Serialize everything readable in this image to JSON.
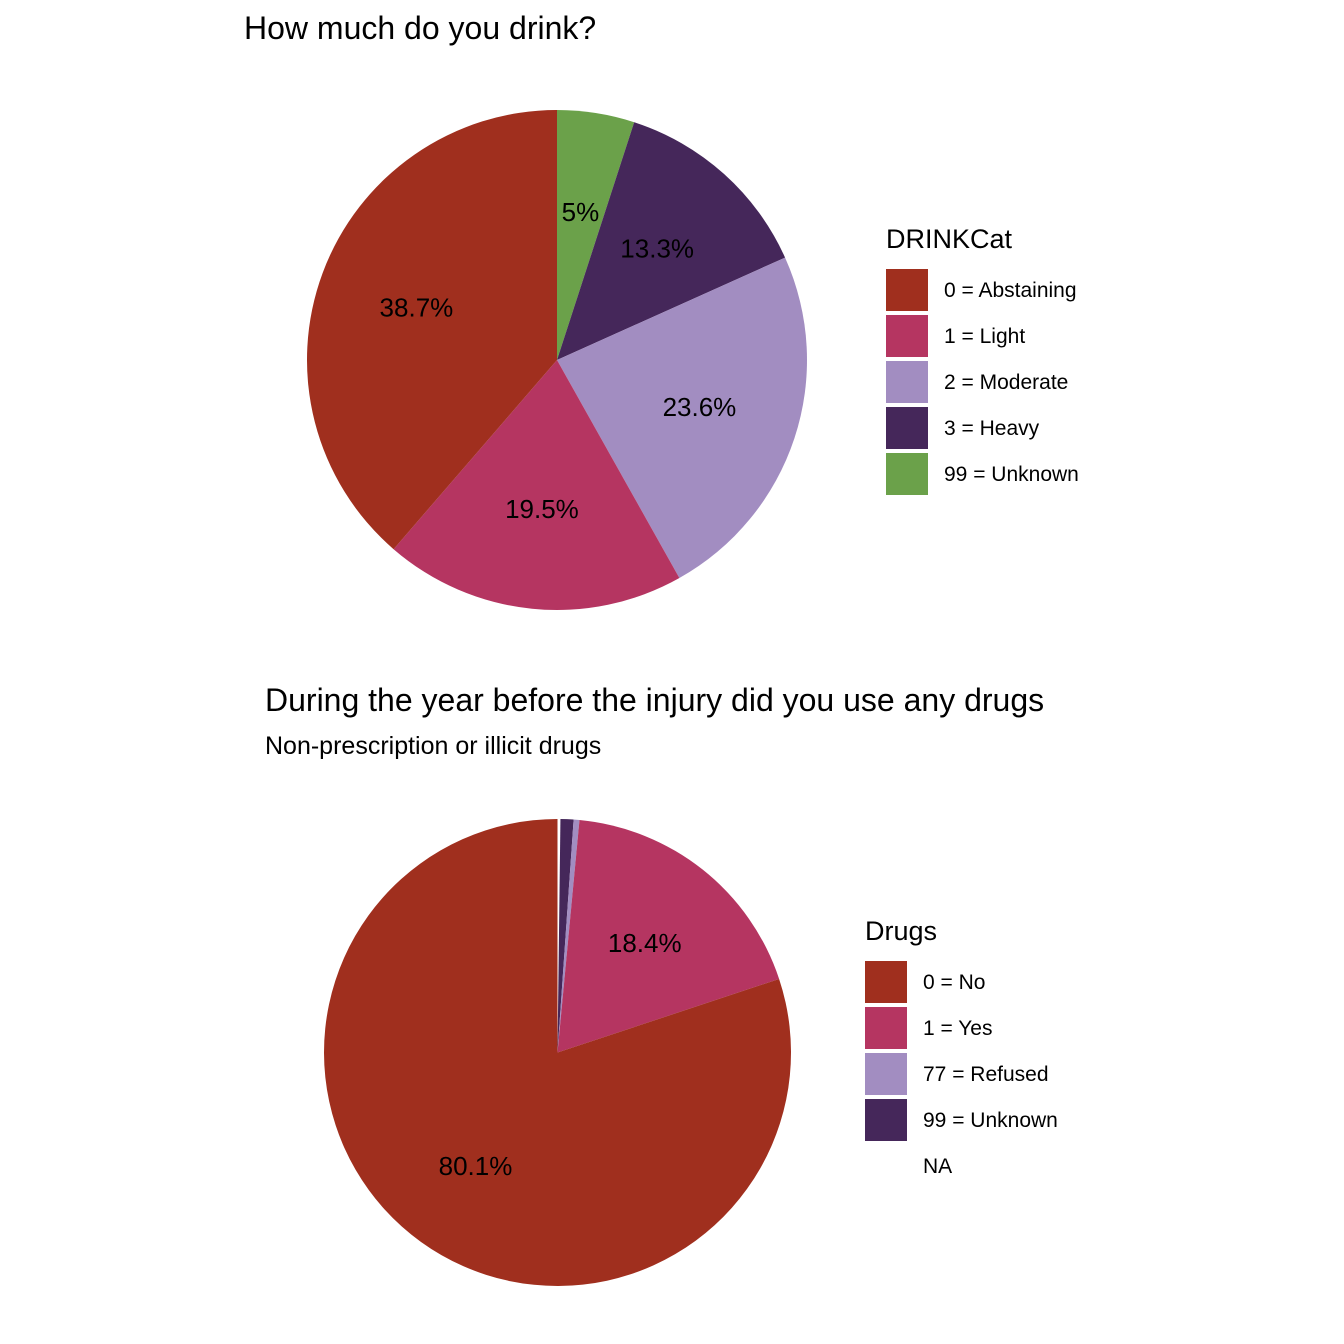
{
  "chart_data": [
    {
      "type": "pie",
      "title": "How much do you drink?",
      "subtitle": "",
      "legend_title": "DRINKCat",
      "legend_position": "right",
      "direction": "clockwise",
      "start": "top",
      "slices": [
        {
          "label": "0 = Abstaining",
          "value": 38.7,
          "value_label": "38.7%",
          "color": "#A02F1E"
        },
        {
          "label": "1 = Light",
          "value": 19.5,
          "value_label": "19.5%",
          "color": "#B53561"
        },
        {
          "label": "2 = Moderate",
          "value": 23.6,
          "value_label": "23.6%",
          "color": "#A28DC1"
        },
        {
          "label": "3 = Heavy",
          "value": 13.3,
          "value_label": "13.3%",
          "color": "#45275A"
        },
        {
          "label": "99 = Unknown",
          "value": 5.0,
          "value_label": "5%",
          "color": "#6BA14A"
        }
      ]
    },
    {
      "type": "pie",
      "title": "During the year before the injury did you use any drugs",
      "subtitle": "Non-prescription or illicit drugs",
      "legend_title": "Drugs",
      "legend_position": "right",
      "direction": "clockwise",
      "start": "top",
      "slices": [
        {
          "label": "0 = No",
          "value": 80.1,
          "value_label": "80.1%",
          "color": "#A02F1E"
        },
        {
          "label": "1 = Yes",
          "value": 18.4,
          "value_label": "18.4%",
          "color": "#B53561"
        },
        {
          "label": "77 = Refused",
          "value": 0.4,
          "value_label": "",
          "color": "#A28DC1"
        },
        {
          "label": "99 = Unknown",
          "value": 0.9,
          "value_label": "",
          "color": "#45275A"
        },
        {
          "label": "NA",
          "value": 0.2,
          "value_label": "",
          "color": "#FFFFFF"
        }
      ]
    }
  ]
}
